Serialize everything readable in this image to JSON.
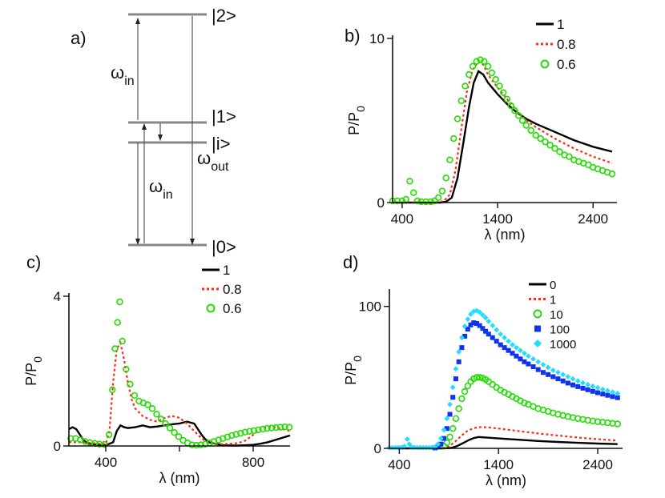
{
  "diagram": {
    "panel_label": "a)",
    "levels": [
      "|2>",
      "|1>",
      "|i>",
      "|0>"
    ],
    "w_in_top": {
      "sym": "ω",
      "sub": "in"
    },
    "w_in_bottom": {
      "sym": "ω",
      "sub": "in"
    },
    "w_out": {
      "sym": "ω",
      "sub": "out"
    }
  },
  "colors": {
    "s0": "#000000",
    "s1": "#ff2a1a",
    "s2": "#22dd00",
    "s3": "#1133ee",
    "s4": "#22ddff"
  },
  "chart_data": [
    {
      "id": "b",
      "panel_label": "b)",
      "type": "line",
      "xlabel": "λ (nm)",
      "ylabel_main": "P/P",
      "ylabel_sub": "0",
      "xlim": [
        300,
        2650
      ],
      "ylim": [
        0,
        10
      ],
      "xticks": [
        400,
        1400,
        2400
      ],
      "yticks": [
        0,
        10
      ],
      "series": [
        {
          "name": "1",
          "style": "solid",
          "color": "#000000",
          "x": [
            300,
            800,
            860,
            920,
            980,
            1040,
            1100,
            1150,
            1200,
            1250,
            1300,
            1400,
            1500,
            1600,
            1700,
            1800,
            2000,
            2200,
            2400,
            2600
          ],
          "y": [
            0,
            0,
            0.05,
            0.3,
            1.5,
            3.6,
            5.8,
            7.3,
            8.0,
            7.8,
            7.3,
            6.6,
            6.0,
            5.5,
            5.1,
            4.8,
            4.3,
            3.8,
            3.4,
            3.1
          ]
        },
        {
          "name": "0.8",
          "style": "dotted",
          "color": "#ff2a1a",
          "x": [
            300,
            780,
            840,
            900,
            960,
            1020,
            1080,
            1140,
            1200,
            1250,
            1300,
            1400,
            1500,
            1600,
            1700,
            1800,
            2000,
            2200,
            2400,
            2600
          ],
          "y": [
            0,
            0,
            0.1,
            0.5,
            2.0,
            4.5,
            6.8,
            8.1,
            8.6,
            8.4,
            7.8,
            7.0,
            6.3,
            5.6,
            5.0,
            4.6,
            3.9,
            3.3,
            2.8,
            2.4
          ]
        },
        {
          "name": "0.6",
          "style": "circle",
          "color": "#22dd00",
          "x": [
            300,
            350,
            400,
            440,
            480,
            520,
            560,
            600,
            650,
            700,
            740,
            780,
            820,
            860,
            900,
            940,
            980,
            1020,
            1060,
            1100,
            1140,
            1180,
            1220,
            1260,
            1300,
            1340,
            1380,
            1420,
            1460,
            1500,
            1540,
            1580,
            1620,
            1660,
            1700,
            1750,
            1800,
            1850,
            1900,
            1950,
            2000,
            2050,
            2100,
            2150,
            2200,
            2250,
            2300,
            2350,
            2400,
            2450,
            2500,
            2550,
            2600
          ],
          "y": [
            0.1,
            0.1,
            0.1,
            0.2,
            1.3,
            0.6,
            0.1,
            0.05,
            0.05,
            0.05,
            0.1,
            0.3,
            0.7,
            1.5,
            2.6,
            3.9,
            5.1,
            6.2,
            7.1,
            7.8,
            8.3,
            8.6,
            8.7,
            8.6,
            8.3,
            7.9,
            7.5,
            7.1,
            6.7,
            6.3,
            5.9,
            5.6,
            5.3,
            5.0,
            4.7,
            4.4,
            4.1,
            3.9,
            3.7,
            3.5,
            3.3,
            3.1,
            2.9,
            2.8,
            2.6,
            2.5,
            2.4,
            2.3,
            2.15,
            2.05,
            1.95,
            1.85,
            1.75
          ]
        }
      ]
    },
    {
      "id": "c",
      "panel_label": "c)",
      "type": "line",
      "xlabel": "λ (nm)",
      "ylabel_main": "P/P",
      "ylabel_sub": "0",
      "xlim": [
        300,
        900
      ],
      "ylim": [
        0,
        4
      ],
      "xticks": [
        400,
        600,
        800
      ],
      "xtick_labels": [
        "400",
        "",
        "800"
      ],
      "yticks": [
        0,
        4
      ],
      "series": [
        {
          "name": "1",
          "style": "solid",
          "color": "#000000",
          "x": [
            300,
            310,
            320,
            330,
            340,
            350,
            360,
            380,
            400,
            420,
            430,
            440,
            450,
            460,
            480,
            500,
            520,
            540,
            560,
            580,
            600,
            620,
            640,
            650,
            660,
            670,
            680,
            700,
            720,
            740,
            760,
            780,
            800,
            820,
            840,
            860,
            880,
            900
          ],
          "y": [
            0.45,
            0.5,
            0.45,
            0.3,
            0.15,
            0.08,
            0.05,
            0.03,
            0.02,
            0.1,
            0.4,
            0.55,
            0.5,
            0.48,
            0.5,
            0.55,
            0.5,
            0.52,
            0.55,
            0.58,
            0.6,
            0.65,
            0.6,
            0.45,
            0.3,
            0.18,
            0.1,
            0.05,
            0.02,
            0.01,
            0.01,
            0.02,
            0.03,
            0.06,
            0.1,
            0.16,
            0.22,
            0.28
          ]
        },
        {
          "name": "0.8",
          "style": "dotted",
          "color": "#ff2a1a",
          "x": [
            300,
            320,
            340,
            360,
            380,
            400,
            410,
            420,
            430,
            440,
            450,
            460,
            470,
            480,
            490,
            500,
            520,
            540,
            560,
            580,
            600,
            620,
            640,
            660,
            680,
            700,
            720,
            740,
            760,
            780,
            800,
            820,
            840,
            860,
            880,
            900
          ],
          "y": [
            0.1,
            0.1,
            0.1,
            0.08,
            0.06,
            0.05,
            0.4,
            1.7,
            2.6,
            2.75,
            2.3,
            1.7,
            1.25,
            1.0,
            0.9,
            0.8,
            0.7,
            0.65,
            0.75,
            0.8,
            0.75,
            0.6,
            0.4,
            0.2,
            0.08,
            0.05,
            0.05,
            0.06,
            0.08,
            0.15,
            0.3,
            0.45,
            0.52,
            0.5,
            0.45,
            0.4
          ]
        },
        {
          "name": "0.6",
          "style": "circle",
          "color": "#22dd00",
          "x": [
            305,
            318,
            331,
            344,
            357,
            370,
            383,
            396,
            409,
            418,
            425,
            432,
            438,
            445,
            455,
            466,
            478,
            490,
            502,
            514,
            526,
            538,
            550,
            562,
            574,
            586,
            598,
            610,
            622,
            634,
            646,
            658,
            670,
            682,
            694,
            706,
            718,
            730,
            742,
            754,
            766,
            778,
            790,
            802,
            814,
            826,
            838,
            850,
            862,
            874,
            886,
            898
          ],
          "y": [
            0.2,
            0.2,
            0.16,
            0.12,
            0.09,
            0.07,
            0.05,
            0.04,
            0.3,
            1.5,
            2.6,
            3.3,
            3.85,
            2.8,
            2.05,
            1.65,
            1.35,
            1.2,
            1.15,
            1.1,
            1.0,
            0.85,
            0.72,
            0.6,
            0.48,
            0.36,
            0.25,
            0.15,
            0.08,
            0.03,
            0.02,
            0.03,
            0.05,
            0.08,
            0.12,
            0.16,
            0.2,
            0.24,
            0.28,
            0.31,
            0.34,
            0.37,
            0.39,
            0.41,
            0.43,
            0.45,
            0.47,
            0.48,
            0.49,
            0.5,
            0.51,
            0.5
          ]
        }
      ]
    },
    {
      "id": "d",
      "panel_label": "d)",
      "type": "line",
      "xlabel": "λ (nm)",
      "ylabel_main": "P/P",
      "ylabel_sub": "0",
      "xlim": [
        300,
        2650
      ],
      "ylim": [
        0,
        110
      ],
      "xticks": [
        400,
        1400,
        2400
      ],
      "yticks": [
        0,
        100
      ],
      "series": [
        {
          "name": "0",
          "style": "solid",
          "color": "#000000",
          "x": [
            300,
            800,
            860,
            920,
            980,
            1040,
            1100,
            1150,
            1200,
            1300,
            1400,
            1600,
            1800,
            2000,
            2200,
            2400,
            2600
          ],
          "y": [
            0,
            0,
            0.05,
            0.3,
            1.5,
            3.6,
            5.8,
            7.3,
            8.0,
            7.5,
            7.0,
            6.1,
            5.2,
            4.5,
            3.9,
            3.4,
            3.0
          ]
        },
        {
          "name": "1",
          "style": "dotted",
          "color": "#ff2a1a",
          "x": [
            300,
            780,
            840,
            900,
            960,
            1020,
            1080,
            1140,
            1200,
            1300,
            1400,
            1600,
            1800,
            2000,
            2200,
            2400,
            2600
          ],
          "y": [
            0,
            0,
            0.3,
            1.5,
            4.5,
            8.5,
            12,
            14,
            15,
            14.8,
            14,
            12.2,
            10.5,
            9.0,
            7.6,
            6.5,
            5.5
          ]
        },
        {
          "name": "10",
          "style": "circle",
          "color": "#22dd00",
          "x": [
            850,
            880,
            910,
            940,
            970,
            1000,
            1030,
            1060,
            1090,
            1120,
            1150,
            1180,
            1210,
            1240,
            1270,
            1300,
            1340,
            1380,
            1420,
            1460,
            1500,
            1540,
            1580,
            1620,
            1660,
            1700,
            1750,
            1800,
            1850,
            1900,
            1950,
            2000,
            2050,
            2100,
            2150,
            2200,
            2250,
            2300,
            2350,
            2400,
            2450,
            2500,
            2550,
            2600
          ],
          "y": [
            1.5,
            4,
            8,
            14,
            21,
            28,
            35,
            40,
            44,
            47,
            49,
            50,
            50,
            49.5,
            48.5,
            47,
            45,
            43,
            41,
            39.5,
            38,
            36.5,
            35,
            33.5,
            32,
            31,
            29.5,
            28,
            27,
            26,
            25,
            24,
            23.2,
            22.4,
            21.7,
            21,
            20.4,
            19.8,
            19.3,
            18.8,
            18.4,
            18,
            17.6,
            17.2
          ]
        },
        {
          "name": "100",
          "style": "square",
          "color": "#1133ee",
          "x": [
            760,
            790,
            820,
            850,
            880,
            910,
            940,
            970,
            1000,
            1030,
            1060,
            1090,
            1120,
            1150,
            1180,
            1210,
            1240,
            1270,
            1300,
            1340,
            1380,
            1420,
            1460,
            1500,
            1540,
            1580,
            1620,
            1660,
            1700,
            1750,
            1800,
            1850,
            1900,
            1950,
            2000,
            2050,
            2100,
            2150,
            2200,
            2250,
            2300,
            2350,
            2400,
            2450,
            2500,
            2550,
            2600
          ],
          "y": [
            0.3,
            1,
            3,
            7,
            14,
            24,
            36,
            49,
            61,
            71,
            79,
            84,
            87,
            88.5,
            88,
            86.5,
            84.5,
            82.5,
            80.5,
            78,
            75.5,
            73,
            71,
            69,
            67,
            65,
            63,
            61,
            59.5,
            57.5,
            55.5,
            53.5,
            52,
            50.5,
            49,
            47.5,
            46,
            44.7,
            43.5,
            42.4,
            41.3,
            40.2,
            39.2,
            38.3,
            37.4,
            36.5,
            35.7
          ]
        },
        {
          "name": "1000",
          "style": "diamond",
          "color": "#22ddff",
          "x": [
            300,
            330,
            360,
            390,
            420,
            450,
            480,
            500,
            520,
            550,
            580,
            610,
            640,
            670,
            700,
            730,
            760,
            790,
            820,
            850,
            880,
            910,
            940,
            970,
            1000,
            1030,
            1060,
            1090,
            1120,
            1150,
            1180,
            1210,
            1240,
            1270,
            1300,
            1340,
            1380,
            1420,
            1460,
            1500,
            1540,
            1580,
            1620,
            1660,
            1700,
            1750,
            1800,
            1850,
            1900,
            1950,
            2000,
            2050,
            2100,
            2150,
            2200,
            2250,
            2300,
            2350,
            2400,
            2450,
            2500,
            2550,
            2600
          ],
          "y": [
            0.5,
            0.5,
            0.5,
            0.5,
            0.6,
            1.5,
            6.5,
            3,
            1,
            0.6,
            0.5,
            0.5,
            0.5,
            0.5,
            0.5,
            0.6,
            1,
            3,
            7,
            13,
            21,
            31,
            43,
            56,
            68,
            78,
            86,
            91,
            94.5,
            96.5,
            97,
            96,
            94,
            92,
            89.5,
            86.5,
            83.5,
            80.5,
            78,
            75.5,
            73,
            71,
            69,
            67,
            65,
            63,
            61,
            59,
            57,
            55,
            53.5,
            52,
            50.5,
            49,
            47.5,
            46.2,
            45,
            43.8,
            42.7,
            41.6,
            40.6,
            39.6,
            38.7
          ]
        }
      ]
    }
  ]
}
